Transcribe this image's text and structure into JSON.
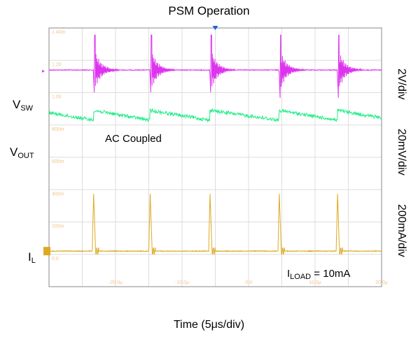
{
  "chart_data": {
    "type": "line",
    "title": "PSM Operation",
    "xlabel": "Time (5μs/div)",
    "x_tick_labels": [
      "-20.0μ",
      "-10.0μ",
      "0.0",
      "10.0μ",
      "20.0μ"
    ],
    "y_tick_labels": [
      "1.40m",
      "1.20",
      "1.00",
      "800m",
      "600m",
      "400m",
      "200m",
      "0.0"
    ],
    "xlim": [
      -30,
      30
    ],
    "x_unit": "μs",
    "grid": true,
    "series": [
      {
        "name": "VSW",
        "name_main": "V",
        "name_sub": "SW",
        "color": "#dd33ee",
        "scale": "2V/div",
        "pulse_times_us": [
          -22,
          -11.8,
          -1.0,
          11.5,
          22.0
        ],
        "level_div": 6.7
      },
      {
        "name": "VOUT",
        "name_main": "V",
        "name_sub": "OUT",
        "color": "#22ee88",
        "scale": "20mV/div",
        "note": "AC Coupled",
        "level_div": 5.3
      },
      {
        "name": "IL",
        "name_main": "I",
        "name_sub": "L",
        "color": "#ddaa22",
        "scale": "200mA/div",
        "pulse_times_us": [
          -22.2,
          -12.0,
          -1.2,
          11.3,
          21.8
        ],
        "level_div": 1.1
      }
    ],
    "annotation": {
      "main": "I",
      "sub": "LOAD",
      "rest": " = 10mA"
    }
  },
  "colors": {
    "grid": "#dddddd",
    "frame": "#888888",
    "tick_label": "#f3c38a",
    "trigger": "#1f5fd6"
  }
}
